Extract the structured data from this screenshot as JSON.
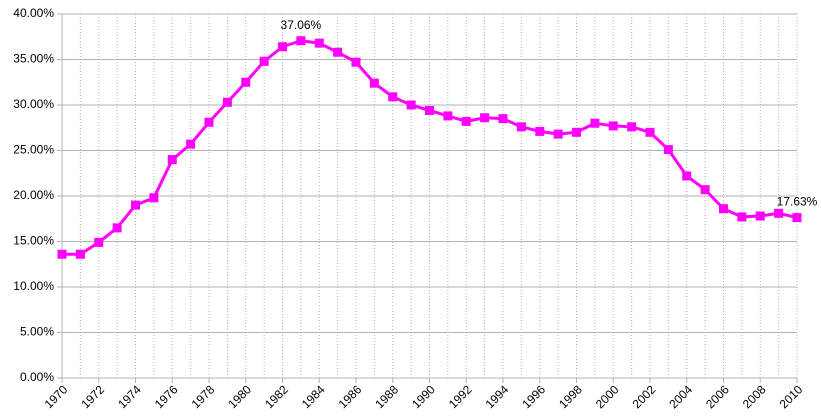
{
  "chart_data": {
    "type": "line",
    "x": [
      1970,
      1971,
      1972,
      1973,
      1974,
      1975,
      1976,
      1977,
      1978,
      1979,
      1980,
      1981,
      1982,
      1983,
      1984,
      1985,
      1986,
      1987,
      1988,
      1989,
      1990,
      1991,
      1992,
      1993,
      1994,
      1995,
      1996,
      1997,
      1998,
      1999,
      2000,
      2001,
      2002,
      2003,
      2004,
      2005,
      2006,
      2007,
      2008,
      2009,
      2010
    ],
    "series": [
      {
        "color": "#ff00ff",
        "values": [
          13.6,
          13.6,
          14.9,
          16.5,
          19.0,
          19.8,
          24.0,
          25.7,
          28.1,
          30.3,
          32.5,
          34.8,
          36.4,
          37.06,
          36.8,
          35.8,
          34.7,
          32.4,
          30.9,
          30.0,
          29.4,
          28.8,
          28.2,
          28.6,
          28.5,
          27.6,
          27.1,
          26.8,
          27.0,
          28.0,
          27.7,
          27.6,
          27.0,
          25.1,
          22.2,
          20.7,
          18.6,
          17.7,
          17.8,
          18.1,
          17.63
        ],
        "value_labels": [
          null,
          null,
          null,
          null,
          null,
          null,
          null,
          null,
          null,
          null,
          null,
          null,
          null,
          "37.06%",
          null,
          null,
          null,
          null,
          null,
          null,
          null,
          null,
          null,
          null,
          null,
          null,
          null,
          null,
          null,
          null,
          null,
          null,
          null,
          null,
          null,
          null,
          null,
          null,
          null,
          null,
          "17.63%"
        ]
      }
    ],
    "xlim": [
      1970,
      2010
    ],
    "xticks": [
      1970,
      1972,
      1974,
      1976,
      1978,
      1980,
      1982,
      1984,
      1986,
      1988,
      1990,
      1992,
      1994,
      1996,
      1998,
      2000,
      2002,
      2004,
      2006,
      2008,
      2010
    ],
    "ylim": [
      0,
      40
    ],
    "yticks": [
      {
        "value": 0,
        "label": "0.00%"
      },
      {
        "value": 5,
        "label": "5.00%"
      },
      {
        "value": 10,
        "label": "10.00%"
      },
      {
        "value": 15,
        "label": "15.00%"
      },
      {
        "value": 20,
        "label": "20.00%"
      },
      {
        "value": 25,
        "label": "25.00%"
      },
      {
        "value": 30,
        "label": "30.00%"
      },
      {
        "value": 35,
        "label": "35.00%"
      },
      {
        "value": 40,
        "label": "40.00%"
      }
    ],
    "grid": true
  }
}
